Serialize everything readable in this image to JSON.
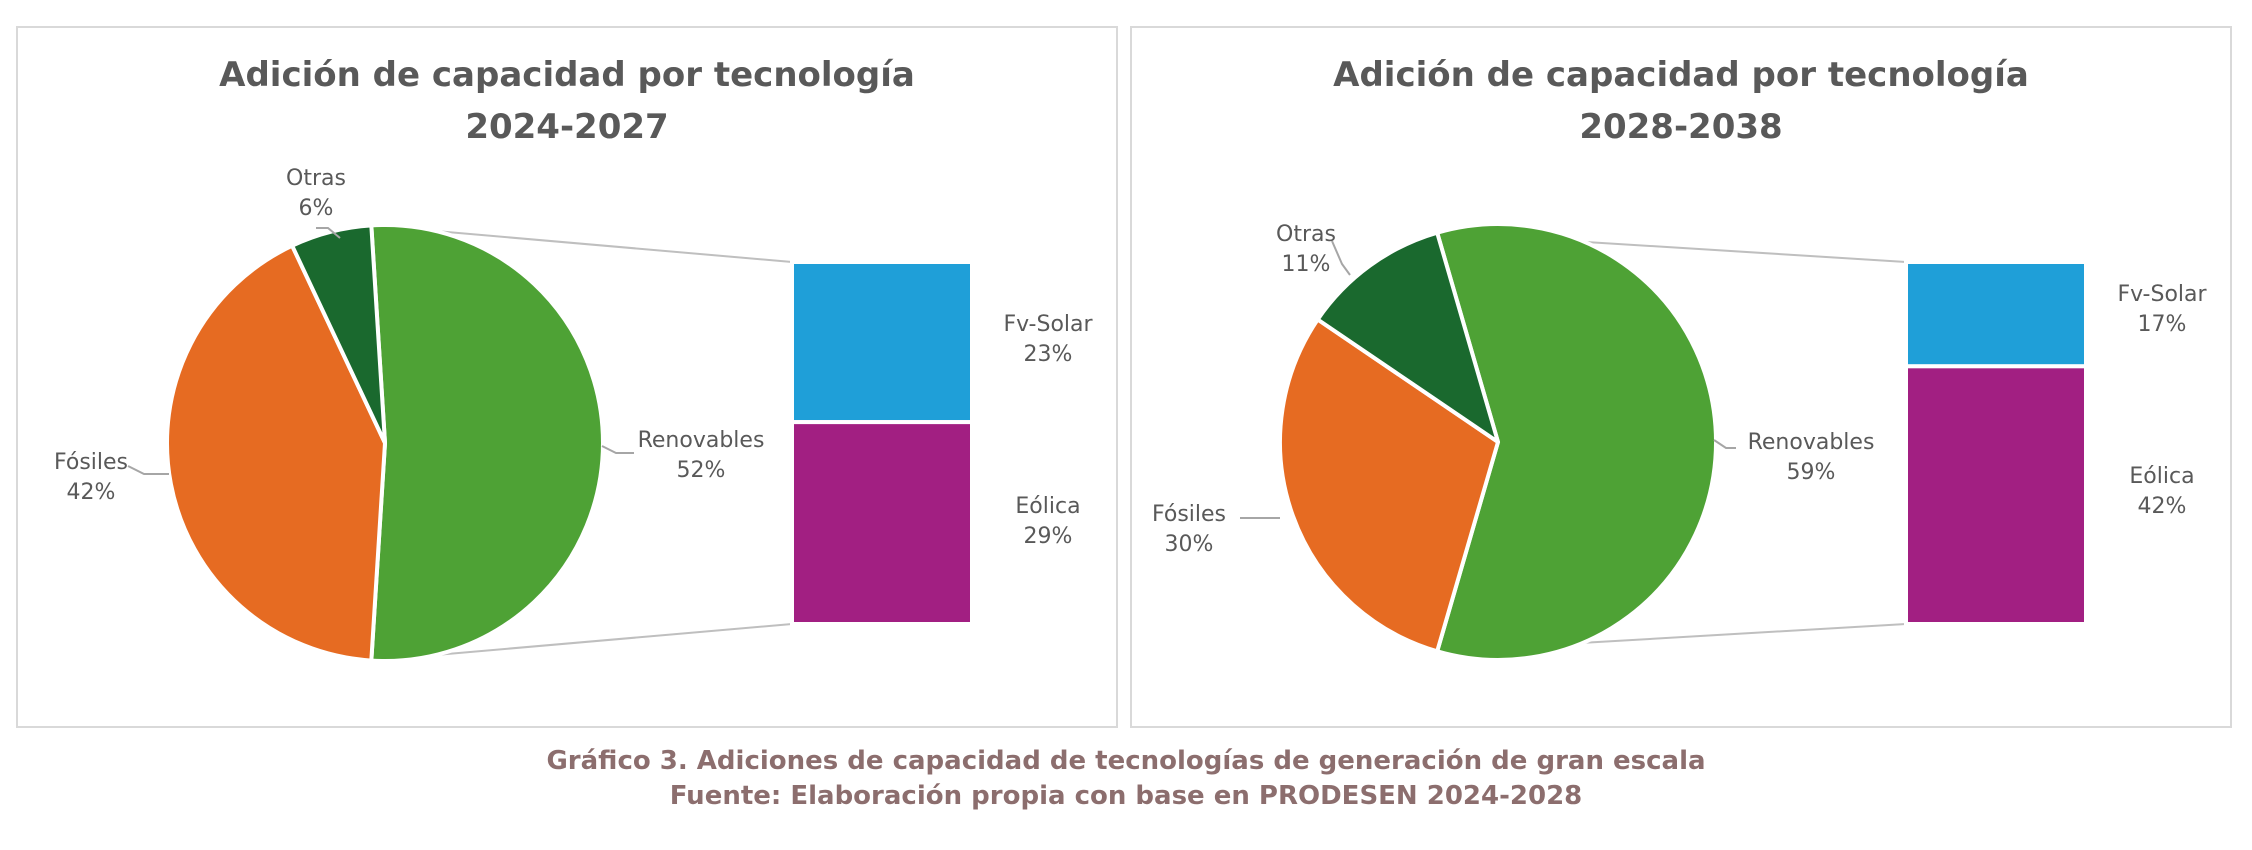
{
  "chart_data": [
    {
      "type": "pie",
      "subtype": "bar-of-pie",
      "title": "Adición de capacidad por tecnología",
      "subtitle": "2024-2027",
      "pie": [
        {
          "name": "Renovables",
          "value": 52,
          "label": "52%",
          "color": "#4ea235"
        },
        {
          "name": "Fósiles",
          "value": 42,
          "label": "42%",
          "color": "#e66b22"
        },
        {
          "name": "Otras",
          "value": 6,
          "label": "6%",
          "color": "#1a692e"
        }
      ],
      "breakdown_of": "Renovables",
      "bar": [
        {
          "name": "Fv-Solar",
          "value": 23,
          "label": "23%",
          "color": "#1f9fd8"
        },
        {
          "name": "Eólica",
          "value": 29,
          "label": "29%",
          "color": "#a21f82"
        }
      ]
    },
    {
      "type": "pie",
      "subtype": "bar-of-pie",
      "title": "Adición de capacidad por tecnología",
      "subtitle": "2028-2038",
      "pie": [
        {
          "name": "Renovables",
          "value": 59,
          "label": "59%",
          "color": "#4ea235"
        },
        {
          "name": "Fósiles",
          "value": 30,
          "label": "30%",
          "color": "#e66b22"
        },
        {
          "name": "Otras",
          "value": 11,
          "label": "11%",
          "color": "#1a692e"
        }
      ],
      "breakdown_of": "Renovables",
      "bar": [
        {
          "name": "Fv-Solar",
          "value": 17,
          "label": "17%",
          "color": "#1f9fd8"
        },
        {
          "name": "Eólica",
          "value": 42,
          "label": "42%",
          "color": "#a21f82"
        }
      ]
    }
  ],
  "caption": {
    "line1": "Gráfico 3. Adiciones de capacidad de tecnologías de generación de gran escala",
    "line2": "Fuente: Elaboración propia con base en PRODESEN 2024-2028"
  }
}
